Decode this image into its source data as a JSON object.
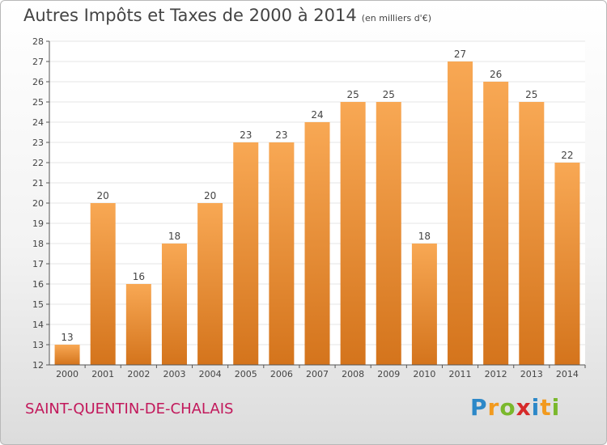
{
  "header": {
    "title": "Autres Impôts et Taxes de 2000 à 2014",
    "unit": "(en milliers d'€)"
  },
  "footer": {
    "place": "SAINT-QUENTIN-DE-CHALAIS",
    "brand_letters": [
      "P",
      "r",
      "o",
      "x",
      "i",
      "t",
      "i"
    ],
    "brand_colors": [
      "#2c88c8",
      "#f29a1e",
      "#7ab82c",
      "#d62a2a",
      "#2c88c8",
      "#f29a1e",
      "#7ab82c"
    ]
  },
  "colors": {
    "bar_top": "#f8a854",
    "bar_bottom": "#d4741c",
    "axis": "#555555",
    "grid": "#e4e4e4"
  },
  "chart_data": {
    "type": "bar",
    "title": "Autres Impôts et Taxes de 2000 à 2014",
    "subtitle": "(en milliers d'€)",
    "categories": [
      "2000",
      "2001",
      "2002",
      "2003",
      "2004",
      "2005",
      "2006",
      "2007",
      "2008",
      "2009",
      "2010",
      "2011",
      "2012",
      "2013",
      "2014"
    ],
    "values": [
      13,
      20,
      16,
      18,
      20,
      23,
      23,
      24,
      25,
      25,
      18,
      27,
      26,
      25,
      22
    ],
    "ylim": [
      12,
      28
    ],
    "yticks": [
      12,
      13,
      14,
      15,
      16,
      17,
      18,
      19,
      20,
      21,
      22,
      23,
      24,
      25,
      26,
      27,
      28
    ],
    "xlabel": "",
    "ylabel": "",
    "grid": true,
    "data_labels": true
  }
}
